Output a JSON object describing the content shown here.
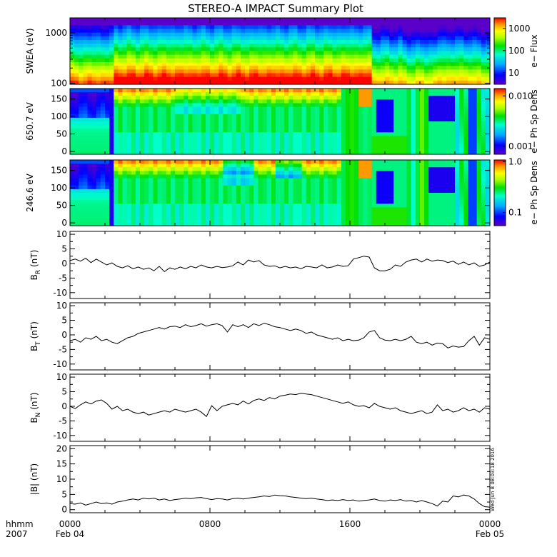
{
  "chart_data": {
    "title": "STEREO-A IMPACT Summary Plot",
    "time_axis": {
      "row1_label": "hhmm",
      "row2_label": "2007",
      "ticks": [
        {
          "hour": 0,
          "label": "0000",
          "date": "Feb 04"
        },
        {
          "hour": 8,
          "label": "0800",
          "date": ""
        },
        {
          "hour": 16,
          "label": "1600",
          "date": ""
        },
        {
          "hour": 24,
          "label": "0000",
          "date": "Feb 05"
        }
      ],
      "range_hours": [
        0,
        24
      ]
    },
    "timestamp": "Wed Jun  8 08:03:18 2016",
    "panels": [
      {
        "type": "heatmap",
        "ylabel": "SWEA (eV)",
        "yscale": "log",
        "ylim": [
          95,
          2000
        ],
        "yticks": [
          {
            "value": 100,
            "label": "100"
          },
          {
            "value": 1000,
            "label": "1000"
          }
        ],
        "colorbar_label": "e− Flux",
        "colorbar_scale": "log",
        "colorbar_range": [
          3,
          3000
        ],
        "colorbar_ticks": [
          {
            "value": 10,
            "label": "10"
          },
          {
            "value": 100,
            "label": "100"
          },
          {
            "value": 1000,
            "label": "1000"
          }
        ],
        "colorscale": "rainbow"
      },
      {
        "type": "heatmap",
        "ylabel": "650.7 eV",
        "yscale": "linear",
        "ylim": [
          -8,
          180
        ],
        "yticks": [
          {
            "value": 0,
            "label": "0"
          },
          {
            "value": 50,
            "label": "50"
          },
          {
            "value": 100,
            "label": "100"
          },
          {
            "value": 150,
            "label": "150"
          }
        ],
        "colorbar_label": "e− Ph Sp Dens",
        "colorbar_scale": "log",
        "colorbar_range": [
          0.0007,
          0.014
        ],
        "colorbar_ticks": [
          {
            "value": 0.001,
            "label": "0.001"
          },
          {
            "value": 0.01,
            "label": "0.010"
          }
        ],
        "colorscale": "rainbow"
      },
      {
        "type": "heatmap",
        "ylabel": "246.6 eV",
        "yscale": "linear",
        "ylim": [
          -8,
          180
        ],
        "yticks": [
          {
            "value": 0,
            "label": "0"
          },
          {
            "value": 50,
            "label": "50"
          },
          {
            "value": 100,
            "label": "100"
          },
          {
            "value": 150,
            "label": "150"
          }
        ],
        "colorbar_label": "e− Ph Sp Dens",
        "colorbar_scale": "log",
        "colorbar_range": [
          0.055,
          1.08
        ],
        "colorbar_ticks": [
          {
            "value": 0.1,
            "label": "0.1"
          },
          {
            "value": 1,
            "label": "1.0"
          }
        ],
        "colorscale": "rainbow"
      },
      {
        "type": "line",
        "ylabel_main": "B",
        "ylabel_sub": "R",
        "ylabel_unit": " (nT)",
        "ylim": [
          -12,
          11
        ],
        "yticks": [
          -10,
          -5,
          0,
          5,
          10
        ],
        "series": [
          {
            "x": [
              0,
              0.3,
              0.6,
              0.9,
              1.2,
              1.5,
              1.8,
              2.1,
              2.4,
              2.7,
              3.0,
              3.3,
              3.6,
              3.9,
              4.2,
              4.5,
              4.8,
              5.1,
              5.4,
              5.7,
              6.0,
              6.3,
              6.6,
              6.9,
              7.2,
              7.5,
              7.8,
              8.1,
              8.4,
              8.7,
              9.0,
              9.3,
              9.6,
              9.9,
              10.2,
              10.5,
              10.8,
              11.1,
              11.4,
              11.7,
              12.0,
              12.3,
              12.6,
              12.9,
              13.2,
              13.5,
              13.8,
              14.1,
              14.4,
              14.7,
              15.0,
              15.3,
              15.6,
              15.9,
              16.2,
              16.5,
              16.8,
              17.1,
              17.4,
              17.7,
              18.0,
              18.3,
              18.6,
              18.9,
              19.2,
              19.5,
              19.8,
              20.1,
              20.4,
              20.7,
              21.0,
              21.3,
              21.6,
              21.9,
              22.2,
              22.5,
              22.8,
              23.1,
              23.4,
              23.7,
              24.0
            ],
            "y": [
              1.0,
              1.5,
              0.8,
              1.8,
              0.3,
              1.5,
              0.5,
              -0.5,
              0.2,
              -1.0,
              -1.5,
              -0.8,
              -1.8,
              -1.2,
              -2.0,
              -1.5,
              -2.5,
              -1.0,
              -2.8,
              -1.5,
              -2.0,
              -1.2,
              -1.8,
              -1.0,
              -1.5,
              -0.5,
              -1.2,
              -1.5,
              -1.0,
              -1.4,
              -1.2,
              -0.8,
              0.5,
              -0.5,
              1.2,
              0.5,
              1.0,
              -0.5,
              -1.0,
              -0.8,
              -1.5,
              -1.0,
              -1.5,
              -1.2,
              -1.8,
              -1.0,
              -1.2,
              -1.5,
              -0.5,
              -1.5,
              -1.2,
              -0.5,
              -1.0,
              -0.8,
              1.5,
              2.0,
              2.5,
              2.2,
              -1.5,
              -2.5,
              -2.5,
              -2.0,
              -0.5,
              -1.0,
              0.5,
              1.2,
              1.5,
              0.5,
              1.5,
              0.8,
              1.2,
              1.0,
              0.3,
              0.8,
              -0.3,
              0.5,
              -0.5,
              0.2,
              -1.0,
              -0.5,
              0.5
            ]
          }
        ]
      },
      {
        "type": "line",
        "ylabel_main": "B",
        "ylabel_sub": "T",
        "ylabel_unit": " (nT)",
        "ylim": [
          -12,
          11
        ],
        "yticks": [
          -10,
          -5,
          0,
          5,
          10
        ],
        "series": [
          {
            "x": [
              0,
              0.3,
              0.6,
              0.9,
              1.2,
              1.5,
              1.8,
              2.1,
              2.4,
              2.7,
              3.0,
              3.3,
              3.6,
              3.9,
              4.2,
              4.5,
              4.8,
              5.1,
              5.4,
              5.7,
              6.0,
              6.3,
              6.6,
              6.9,
              7.2,
              7.5,
              7.8,
              8.1,
              8.4,
              8.7,
              9.0,
              9.3,
              9.6,
              9.9,
              10.2,
              10.5,
              10.8,
              11.1,
              11.4,
              11.7,
              12.0,
              12.3,
              12.6,
              12.9,
              13.2,
              13.5,
              13.8,
              14.1,
              14.4,
              14.7,
              15.0,
              15.3,
              15.6,
              15.9,
              16.2,
              16.5,
              16.8,
              17.1,
              17.4,
              17.7,
              18.0,
              18.3,
              18.6,
              18.9,
              19.2,
              19.5,
              19.8,
              20.1,
              20.4,
              20.7,
              21.0,
              21.3,
              21.6,
              21.9,
              22.2,
              22.5,
              22.8,
              23.1,
              23.4,
              23.7,
              24.0
            ],
            "y": [
              -2.0,
              -1.5,
              -2.5,
              -1.0,
              -1.5,
              -0.5,
              -2.0,
              -1.5,
              -2.5,
              -3.0,
              -2.0,
              -1.0,
              -0.5,
              0.5,
              1.0,
              1.5,
              2.0,
              2.5,
              2.0,
              2.8,
              3.0,
              2.5,
              3.5,
              2.8,
              3.2,
              3.8,
              3.0,
              3.5,
              3.8,
              3.2,
              1.0,
              3.5,
              2.8,
              3.5,
              2.5,
              3.8,
              3.2,
              4.0,
              3.5,
              2.8,
              2.5,
              2.0,
              1.5,
              2.0,
              1.5,
              0.5,
              1.0,
              0.0,
              -0.5,
              -1.0,
              -1.5,
              -1.0,
              -2.0,
              -1.5,
              -2.0,
              -1.8,
              -1.0,
              1.0,
              1.5,
              -1.0,
              -1.8,
              -2.0,
              -1.5,
              -2.0,
              -1.5,
              -0.5,
              -2.5,
              -3.0,
              -2.5,
              -3.5,
              -2.8,
              -3.0,
              -4.5,
              -3.8,
              -4.2,
              -4.0,
              -2.0,
              -0.5,
              -3.5,
              -1.0,
              -1.5
            ]
          }
        ]
      },
      {
        "type": "line",
        "ylabel_main": "B",
        "ylabel_sub": "N",
        "ylabel_unit": " (nT)",
        "ylim": [
          -12,
          11
        ],
        "yticks": [
          -10,
          -5,
          0,
          5,
          10
        ],
        "series": [
          {
            "x": [
              0,
              0.3,
              0.6,
              0.9,
              1.2,
              1.5,
              1.8,
              2.1,
              2.4,
              2.7,
              3.0,
              3.3,
              3.6,
              3.9,
              4.2,
              4.5,
              4.8,
              5.1,
              5.4,
              5.7,
              6.0,
              6.3,
              6.6,
              6.9,
              7.2,
              7.5,
              7.8,
              8.1,
              8.4,
              8.7,
              9.0,
              9.3,
              9.6,
              9.9,
              10.2,
              10.5,
              10.8,
              11.1,
              11.4,
              11.7,
              12.0,
              12.3,
              12.6,
              12.9,
              13.2,
              13.5,
              13.8,
              14.1,
              14.4,
              14.7,
              15.0,
              15.3,
              15.6,
              15.9,
              16.2,
              16.5,
              16.8,
              17.1,
              17.4,
              17.7,
              18.0,
              18.3,
              18.6,
              18.9,
              19.2,
              19.5,
              19.8,
              20.1,
              20.4,
              20.7,
              21.0,
              21.3,
              21.6,
              21.9,
              22.2,
              22.5,
              22.8,
              23.1,
              23.4,
              23.7,
              24.0
            ],
            "y": [
              0.0,
              -0.8,
              0.5,
              1.5,
              0.8,
              1.8,
              2.2,
              1.0,
              -1.0,
              0.0,
              -1.5,
              -1.0,
              -2.0,
              -2.5,
              -2.0,
              -3.0,
              -2.5,
              -2.0,
              -1.5,
              -2.0,
              -1.0,
              -1.5,
              -2.0,
              -1.5,
              -1.0,
              -2.0,
              -3.5,
              0.2,
              -1.5,
              0.0,
              0.5,
              1.0,
              0.5,
              1.8,
              0.8,
              2.0,
              2.5,
              2.0,
              3.0,
              2.5,
              3.5,
              3.8,
              4.2,
              4.0,
              4.5,
              4.2,
              4.0,
              3.5,
              3.0,
              2.5,
              2.0,
              1.5,
              1.0,
              1.5,
              0.5,
              0.0,
              0.2,
              -0.5,
              1.0,
              0.0,
              -0.5,
              -1.0,
              -0.5,
              -1.5,
              -2.0,
              -2.5,
              -2.0,
              -1.5,
              -2.5,
              -2.0,
              0.5,
              -1.5,
              -1.0,
              -2.0,
              -1.5,
              -0.5,
              -1.5,
              -1.0,
              -2.0,
              -0.5,
              -1.0
            ]
          }
        ]
      },
      {
        "type": "line",
        "ylabel_main": "|B|",
        "ylabel_sub": "",
        "ylabel_unit": " (nT)",
        "ylim": [
          -1,
          21
        ],
        "yticks": [
          0,
          5,
          10,
          15,
          20
        ],
        "series": [
          {
            "x": [
              0,
              0.3,
              0.6,
              0.9,
              1.2,
              1.5,
              1.8,
              2.1,
              2.4,
              2.7,
              3.0,
              3.3,
              3.6,
              3.9,
              4.2,
              4.5,
              4.8,
              5.1,
              5.4,
              5.7,
              6.0,
              6.3,
              6.6,
              6.9,
              7.2,
              7.5,
              7.8,
              8.1,
              8.4,
              8.7,
              9.0,
              9.3,
              9.6,
              9.9,
              10.2,
              10.5,
              10.8,
              11.1,
              11.4,
              11.7,
              12.0,
              12.3,
              12.6,
              12.9,
              13.2,
              13.5,
              13.8,
              14.1,
              14.4,
              14.7,
              15.0,
              15.3,
              15.6,
              15.9,
              16.2,
              16.5,
              16.8,
              17.1,
              17.4,
              17.7,
              18.0,
              18.3,
              18.6,
              18.9,
              19.2,
              19.5,
              19.8,
              20.1,
              20.4,
              20.7,
              21.0,
              21.3,
              21.6,
              21.9,
              22.2,
              22.5,
              22.8,
              23.1,
              23.4,
              23.7,
              24.0
            ],
            "y": [
              2.0,
              1.8,
              2.2,
              1.5,
              2.0,
              2.5,
              2.0,
              2.2,
              1.8,
              2.5,
              2.8,
              3.2,
              3.5,
              3.2,
              3.8,
              3.5,
              3.8,
              3.2,
              3.5,
              3.0,
              3.3,
              3.5,
              3.8,
              3.6,
              3.9,
              4.0,
              3.6,
              3.3,
              3.6,
              3.5,
              3.2,
              3.6,
              3.8,
              3.5,
              3.8,
              4.0,
              4.2,
              4.5,
              4.3,
              4.8,
              4.6,
              4.5,
              4.2,
              4.0,
              3.8,
              3.6,
              3.8,
              3.5,
              3.3,
              3.0,
              3.2,
              3.0,
              3.3,
              3.0,
              3.2,
              2.8,
              3.0,
              3.2,
              3.5,
              3.0,
              2.8,
              3.2,
              3.0,
              3.3,
              2.8,
              3.0,
              2.5,
              3.0,
              2.5,
              2.0,
              1.2,
              2.8,
              2.5,
              4.5,
              4.2,
              4.8,
              4.5,
              3.5,
              2.0,
              1.0,
              0.8
            ]
          }
        ]
      }
    ]
  }
}
